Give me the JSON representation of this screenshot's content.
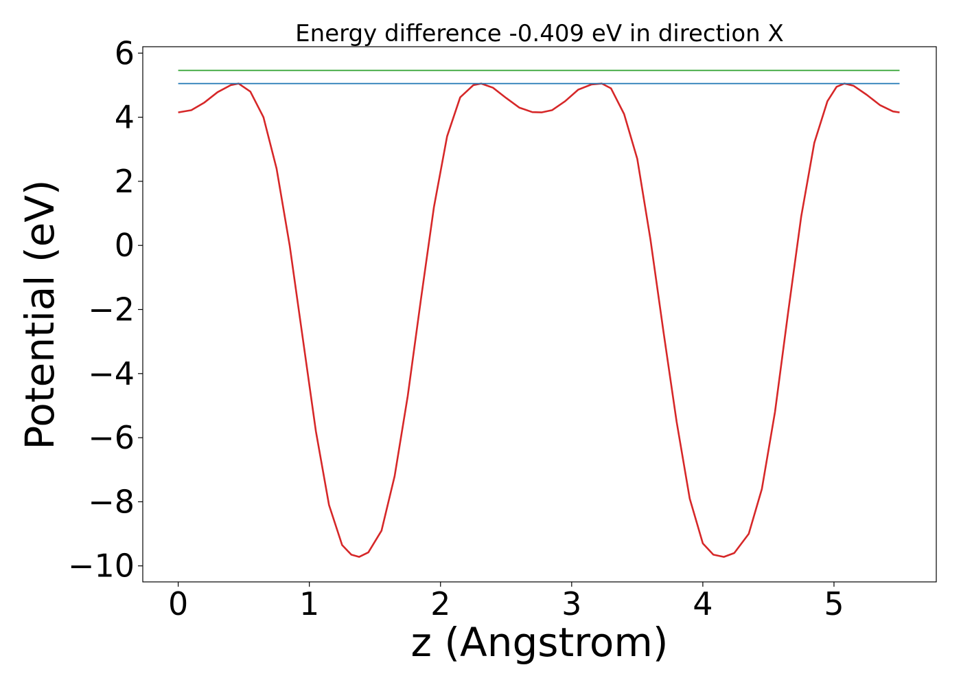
{
  "chart_data": {
    "type": "line",
    "title": "Energy difference -0.409 eV in direction X",
    "xlabel": "z (Angstrom)",
    "ylabel": "Potential (eV)",
    "xlim": [
      -0.27,
      5.78
    ],
    "ylim": [
      -10.5,
      6.2
    ],
    "xticks": [
      0,
      1,
      2,
      3,
      4,
      5
    ],
    "xtick_labels": [
      "0",
      "1",
      "2",
      "3",
      "4",
      "5"
    ],
    "yticks": [
      -10,
      -8,
      -6,
      -4,
      -2,
      0,
      2,
      4,
      6
    ],
    "ytick_labels": [
      "−10",
      "−8",
      "−6",
      "−4",
      "−2",
      "0",
      "2",
      "4",
      "6"
    ],
    "grid": false,
    "legend": "none",
    "series": [
      {
        "color": "#d62728",
        "x": [
          0.0,
          0.1,
          0.2,
          0.3,
          0.4,
          0.46,
          0.55,
          0.65,
          0.75,
          0.85,
          0.95,
          1.05,
          1.15,
          1.25,
          1.32,
          1.38,
          1.45,
          1.55,
          1.65,
          1.75,
          1.85,
          1.95,
          2.05,
          2.15,
          2.25,
          2.31,
          2.4,
          2.5,
          2.6,
          2.7,
          2.77,
          2.85,
          2.95,
          3.05,
          3.15,
          3.23,
          3.3,
          3.4,
          3.5,
          3.6,
          3.7,
          3.8,
          3.9,
          4.0,
          4.08,
          4.16,
          4.24,
          4.35,
          4.45,
          4.55,
          4.65,
          4.75,
          4.85,
          4.95,
          5.02,
          5.08,
          5.15,
          5.25,
          5.35,
          5.45,
          5.5
        ],
        "y": [
          4.15,
          4.22,
          4.46,
          4.78,
          5.0,
          5.05,
          4.8,
          4.0,
          2.4,
          0.0,
          -2.9,
          -5.8,
          -8.1,
          -9.35,
          -9.65,
          -9.72,
          -9.58,
          -8.9,
          -7.2,
          -4.7,
          -1.7,
          1.2,
          3.4,
          4.62,
          5.0,
          5.05,
          4.92,
          4.6,
          4.3,
          4.16,
          4.15,
          4.22,
          4.5,
          4.86,
          5.02,
          5.05,
          4.9,
          4.1,
          2.7,
          0.2,
          -2.7,
          -5.5,
          -7.9,
          -9.3,
          -9.65,
          -9.72,
          -9.6,
          -9.0,
          -7.6,
          -5.2,
          -2.1,
          0.9,
          3.2,
          4.5,
          4.95,
          5.05,
          4.98,
          4.7,
          4.38,
          4.18,
          4.15
        ]
      },
      {
        "color": "#1f77b4",
        "x": [
          0.0,
          5.5
        ],
        "y": [
          5.05,
          5.05
        ]
      },
      {
        "color": "#2ca02c",
        "x": [
          0.0,
          5.5
        ],
        "y": [
          5.46,
          5.46
        ]
      }
    ]
  }
}
